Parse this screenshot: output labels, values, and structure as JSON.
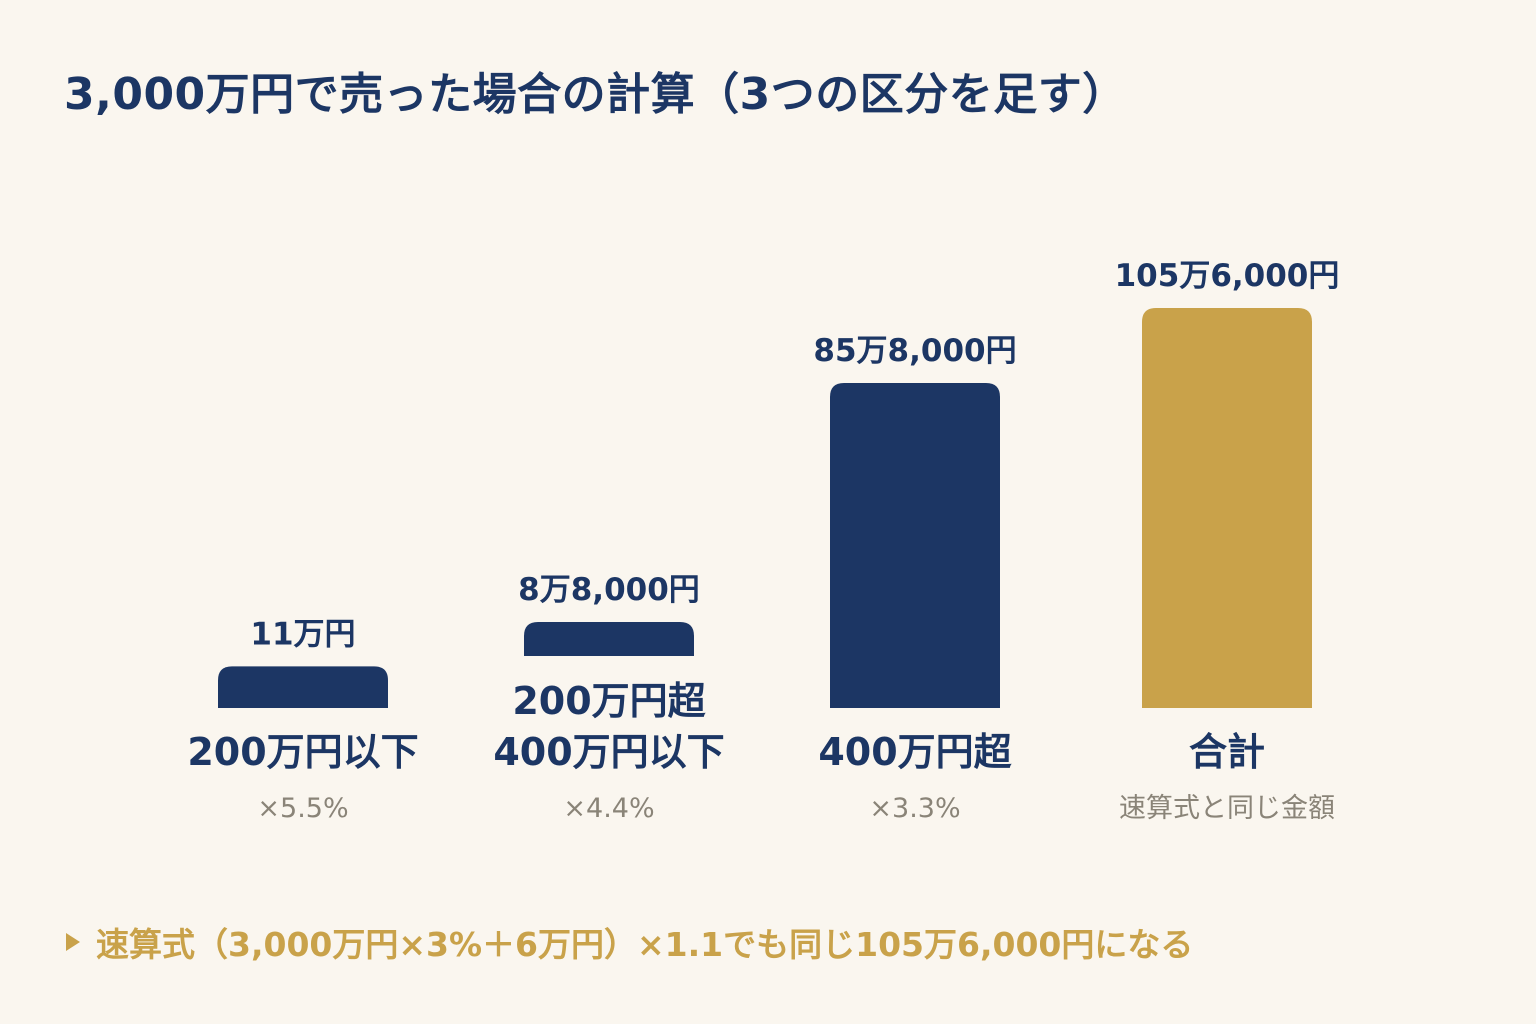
{
  "title": "3,000万円で売った場合の計算（3つの区分を足す）",
  "colors": {
    "background": "#faf6ef",
    "navy": "#1c3664",
    "gold": "#c9a24a",
    "gray": "#8a8478"
  },
  "chart_data": {
    "type": "bar",
    "title": "3,000万円で売った場合の計算（3つの区分を足す）",
    "unit": "円",
    "categories": [
      "200万円以下",
      "200万円超 400万円以下",
      "400万円超",
      "合計"
    ],
    "values": [
      110000,
      88000,
      858000,
      1056000
    ],
    "bars": [
      {
        "value": 110000,
        "value_label": "11万円",
        "category_lines": [
          "200万円以下"
        ],
        "sub_label": "×5.5%",
        "color": "#1c3664"
      },
      {
        "value": 88000,
        "value_label": "8万8,000円",
        "category_lines": [
          "200万円超",
          "400万円以下"
        ],
        "sub_label": "×4.4%",
        "color": "#1c3664"
      },
      {
        "value": 858000,
        "value_label": "85万8,000円",
        "category_lines": [
          "400万円超"
        ],
        "sub_label": "×3.3%",
        "color": "#1c3664"
      },
      {
        "value": 1056000,
        "value_label": "105万6,000円",
        "category_lines": [
          "合計"
        ],
        "sub_label": "速算式と同じ金額",
        "color": "#c9a24a"
      }
    ],
    "axes_visible": false,
    "grid": false,
    "legend": "none"
  },
  "footnote": "速算式（3,000万円×3%＋6万円）×1.1でも同じ105万6,000円になる"
}
